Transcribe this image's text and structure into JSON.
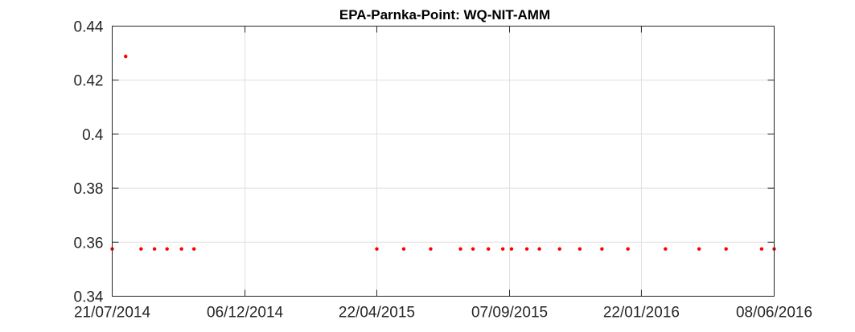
{
  "chart_data": {
    "type": "scatter",
    "title": "EPA-Parnka-Point: WQ-NIT-AMM",
    "xlabel": "",
    "ylabel": "",
    "x_axis_type": "date",
    "xlim": [
      "2014-07-21",
      "2016-06-08"
    ],
    "ylim": [
      0.34,
      0.44
    ],
    "x_ticks": [
      "2014-07-21",
      "2014-12-06",
      "2015-04-22",
      "2015-09-07",
      "2016-01-22",
      "2016-06-08"
    ],
    "x_tick_labels": [
      "21/07/2014",
      "06/12/2014",
      "22/04/2015",
      "07/09/2015",
      "22/01/2016",
      "08/06/2016"
    ],
    "y_ticks": [
      0.34,
      0.36,
      0.38,
      0.4,
      0.42,
      0.44
    ],
    "y_tick_labels": [
      "0.34",
      "0.36",
      "0.38",
      "0.4",
      "0.42",
      "0.44"
    ],
    "grid": true,
    "marker_color": "#ff0000",
    "series": [
      {
        "points": [
          {
            "x": "2014-07-21",
            "y": 0.3575
          },
          {
            "x": "2014-08-04",
            "y": 0.4288
          },
          {
            "x": "2014-08-20",
            "y": 0.3575
          },
          {
            "x": "2014-09-03",
            "y": 0.3575
          },
          {
            "x": "2014-09-16",
            "y": 0.3575
          },
          {
            "x": "2014-10-01",
            "y": 0.3575
          },
          {
            "x": "2014-10-14",
            "y": 0.3575
          },
          {
            "x": "2015-04-22",
            "y": 0.3575
          },
          {
            "x": "2015-05-20",
            "y": 0.3575
          },
          {
            "x": "2015-06-17",
            "y": 0.3575
          },
          {
            "x": "2015-07-18",
            "y": 0.3575
          },
          {
            "x": "2015-07-31",
            "y": 0.3575
          },
          {
            "x": "2015-08-16",
            "y": 0.3575
          },
          {
            "x": "2015-08-31",
            "y": 0.3575
          },
          {
            "x": "2015-09-09",
            "y": 0.3575
          },
          {
            "x": "2015-09-25",
            "y": 0.3575
          },
          {
            "x": "2015-10-08",
            "y": 0.3575
          },
          {
            "x": "2015-10-29",
            "y": 0.3575
          },
          {
            "x": "2015-11-19",
            "y": 0.3575
          },
          {
            "x": "2015-12-12",
            "y": 0.3575
          },
          {
            "x": "2016-01-08",
            "y": 0.3575
          },
          {
            "x": "2016-02-16",
            "y": 0.3575
          },
          {
            "x": "2016-03-22",
            "y": 0.3575
          },
          {
            "x": "2016-04-19",
            "y": 0.3575
          },
          {
            "x": "2016-05-26",
            "y": 0.3575
          },
          {
            "x": "2016-06-08",
            "y": 0.3575
          }
        ]
      }
    ]
  }
}
